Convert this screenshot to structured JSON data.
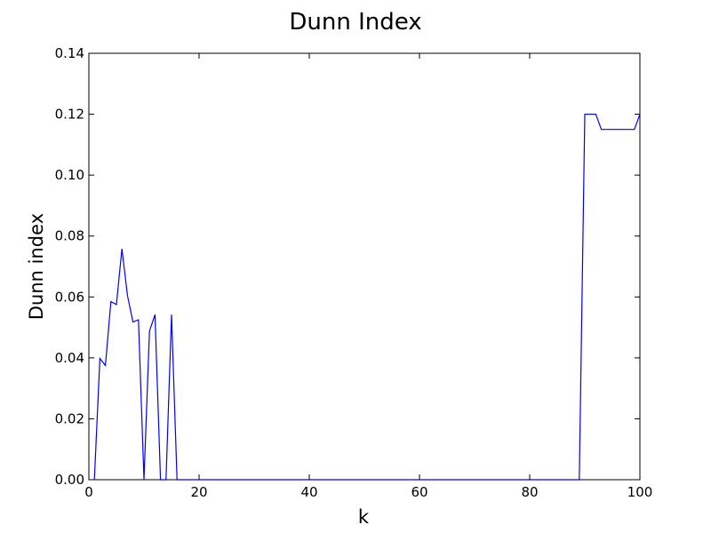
{
  "chart_data": {
    "type": "line",
    "title": "Dunn Index",
    "xlabel": "k",
    "ylabel": "Dunn index",
    "xlim": [
      0,
      100
    ],
    "ylim": [
      0,
      0.14
    ],
    "x_ticks": [
      0,
      20,
      40,
      60,
      80,
      100
    ],
    "y_ticks": [
      0.0,
      0.02,
      0.04,
      0.06,
      0.08,
      0.1,
      0.12,
      0.14
    ],
    "x_tick_labels": [
      "0",
      "20",
      "40",
      "60",
      "80",
      "100"
    ],
    "y_tick_labels": [
      "0.00",
      "0.02",
      "0.04",
      "0.06",
      "0.08",
      "0.10",
      "0.12",
      "0.14"
    ],
    "grid": false,
    "series": [
      {
        "color": "#0000ff",
        "x": [
          1,
          2,
          3,
          4,
          5,
          6,
          7,
          8,
          9,
          10,
          11,
          12,
          13,
          14,
          15,
          16,
          17,
          18,
          19,
          20,
          21,
          22,
          23,
          24,
          25,
          26,
          27,
          28,
          29,
          30,
          31,
          32,
          33,
          34,
          35,
          36,
          37,
          38,
          39,
          40,
          41,
          42,
          43,
          44,
          45,
          46,
          47,
          48,
          49,
          50,
          51,
          52,
          53,
          54,
          55,
          56,
          57,
          58,
          59,
          60,
          61,
          62,
          63,
          64,
          65,
          66,
          67,
          68,
          69,
          70,
          71,
          72,
          73,
          74,
          75,
          76,
          77,
          78,
          79,
          80,
          81,
          82,
          83,
          84,
          85,
          86,
          87,
          88,
          89,
          90,
          91,
          92,
          93,
          94,
          95,
          96,
          97,
          98,
          99,
          100
        ],
        "y": [
          0,
          0.0398,
          0.0375,
          0.0585,
          0.0575,
          0.0758,
          0.0605,
          0.0518,
          0.0525,
          0,
          0.0488,
          0.0542,
          0,
          0,
          0.0542,
          0,
          0,
          0,
          0,
          0,
          0,
          0,
          0,
          0,
          0,
          0,
          0,
          0,
          0,
          0,
          0,
          0,
          0,
          0,
          0,
          0,
          0,
          0,
          0,
          0,
          0,
          0,
          0,
          0,
          0,
          0,
          0,
          0,
          0,
          0,
          0,
          0,
          0,
          0,
          0,
          0,
          0,
          0,
          0,
          0,
          0,
          0,
          0,
          0,
          0,
          0,
          0,
          0,
          0,
          0,
          0,
          0,
          0,
          0,
          0,
          0,
          0,
          0,
          0,
          0,
          0,
          0,
          0,
          0,
          0,
          0,
          0,
          0,
          0,
          0.12,
          0.12,
          0.12,
          0.115,
          0.115,
          0.115,
          0.115,
          0.115,
          0.115,
          0.115,
          0.12
        ]
      }
    ]
  }
}
